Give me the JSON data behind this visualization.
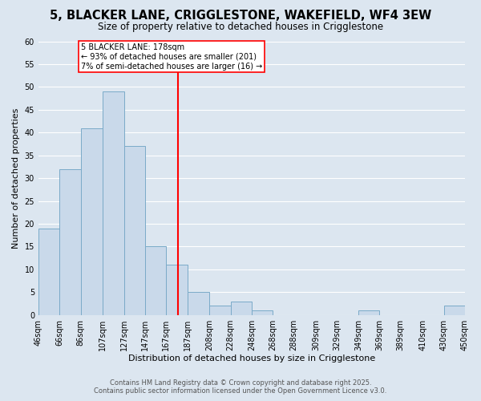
{
  "title": "5, BLACKER LANE, CRIGGLESTONE, WAKEFIELD, WF4 3EW",
  "subtitle": "Size of property relative to detached houses in Crigglestone",
  "xlabel": "Distribution of detached houses by size in Crigglestone",
  "ylabel": "Number of detached properties",
  "bar_color": "#c9d9ea",
  "bar_edge_color": "#7aaac8",
  "background_color": "#dce6f0",
  "plot_bg_color": "#dce6f0",
  "grid_color": "#ffffff",
  "vline_x": 178,
  "vline_color": "red",
  "annotation_title": "5 BLACKER LANE: 178sqm",
  "annotation_line1": "← 93% of detached houses are smaller (201)",
  "annotation_line2": "7% of semi-detached houses are larger (16) →",
  "bin_edges": [
    46,
    66,
    86,
    107,
    127,
    147,
    167,
    187,
    208,
    228,
    248,
    268,
    288,
    309,
    329,
    349,
    369,
    389,
    410,
    430,
    450
  ],
  "bin_counts": [
    19,
    32,
    41,
    49,
    37,
    15,
    11,
    5,
    2,
    3,
    1,
    0,
    0,
    0,
    0,
    1,
    0,
    0,
    0,
    2
  ],
  "tick_labels": [
    "46sqm",
    "66sqm",
    "86sqm",
    "107sqm",
    "127sqm",
    "147sqm",
    "167sqm",
    "187sqm",
    "208sqm",
    "228sqm",
    "248sqm",
    "268sqm",
    "288sqm",
    "309sqm",
    "329sqm",
    "349sqm",
    "369sqm",
    "389sqm",
    "410sqm",
    "430sqm",
    "450sqm"
  ],
  "ylim": [
    0,
    60
  ],
  "yticks": [
    0,
    5,
    10,
    15,
    20,
    25,
    30,
    35,
    40,
    45,
    50,
    55,
    60
  ],
  "footer_line1": "Contains HM Land Registry data © Crown copyright and database right 2025.",
  "footer_line2": "Contains public sector information licensed under the Open Government Licence v3.0.",
  "title_fontsize": 10.5,
  "subtitle_fontsize": 8.5,
  "axis_label_fontsize": 8,
  "tick_fontsize": 7,
  "footer_fontsize": 6
}
